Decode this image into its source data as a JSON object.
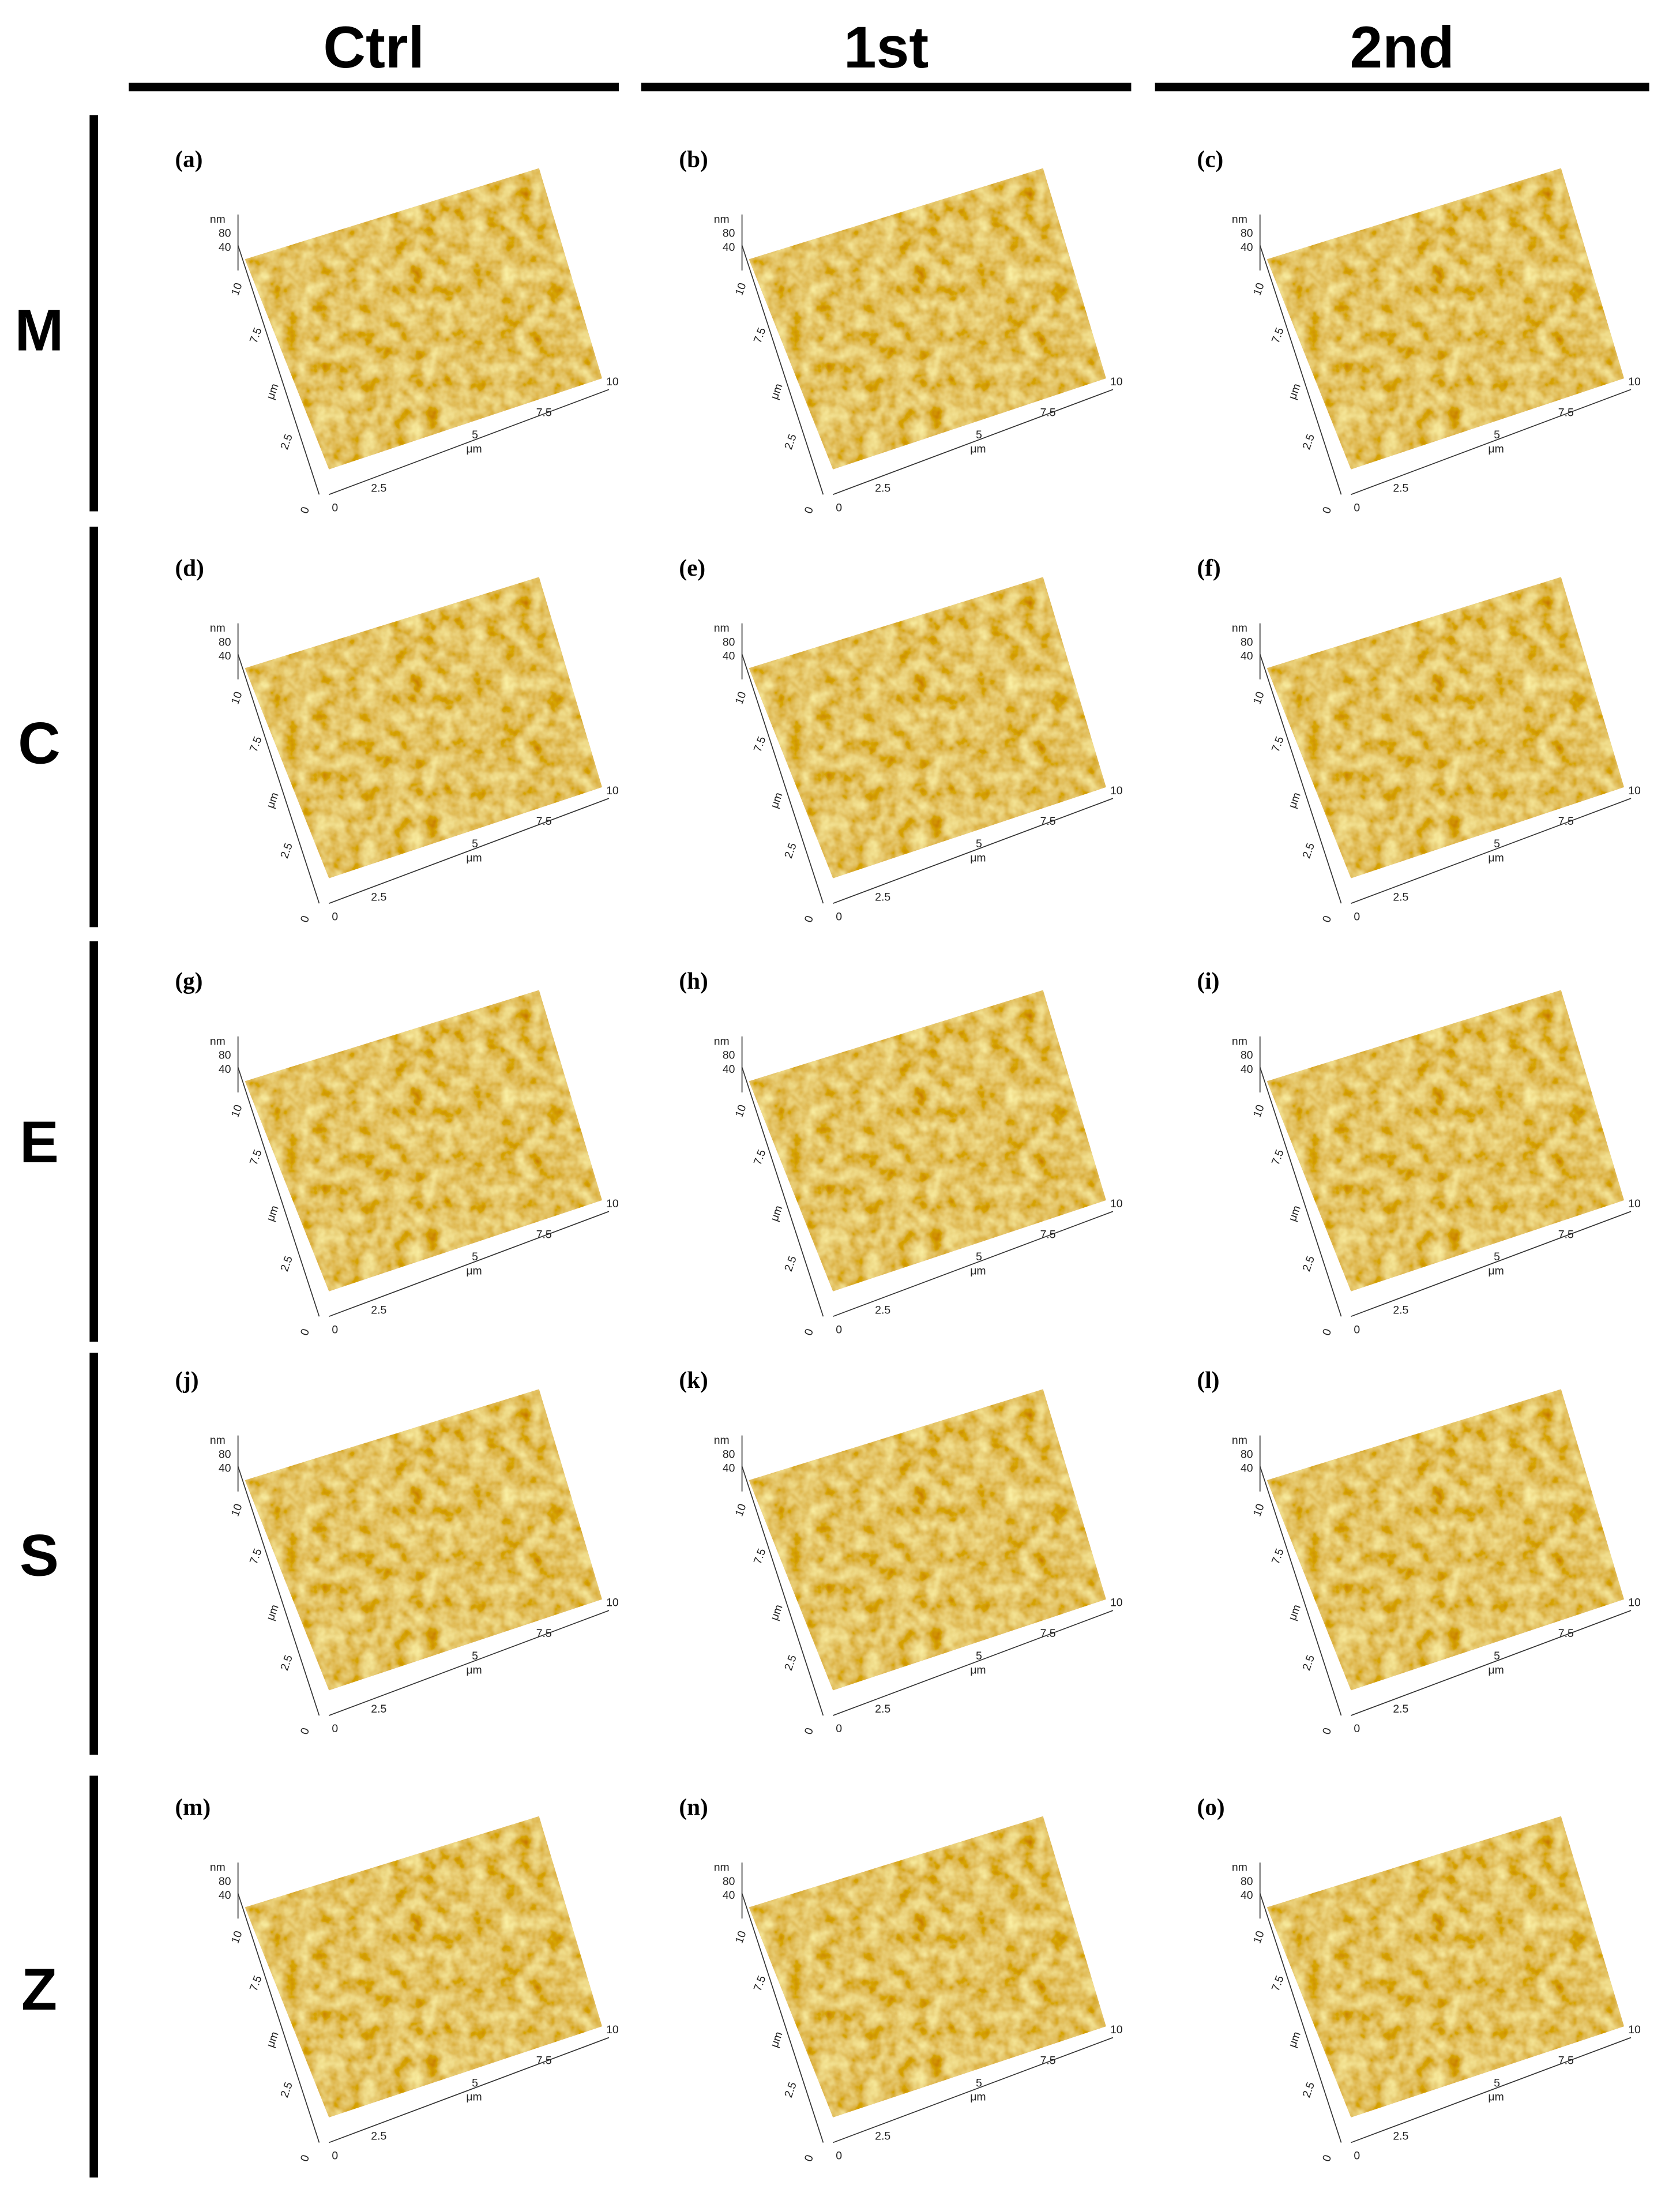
{
  "columns": [
    "Ctrl",
    "1st",
    "2nd"
  ],
  "rows": [
    "M",
    "C",
    "E",
    "S",
    "Z"
  ],
  "panels": [
    [
      "(a)",
      "(b)",
      "(c)"
    ],
    [
      "(d)",
      "(e)",
      "(f)"
    ],
    [
      "(g)",
      "(h)",
      "(i)"
    ],
    [
      "(j)",
      "(k)",
      "(l)"
    ],
    [
      "(m)",
      "(n)",
      "(o)"
    ]
  ],
  "axis_labels": {
    "z_unit": "nm",
    "z_ticks": [
      "80",
      "40"
    ],
    "y_ticks": [
      "0",
      "2.5",
      "7.5",
      "10"
    ],
    "y_unit": "μm",
    "x_ticks": [
      "0",
      "2.5",
      "5",
      "7.5",
      "10"
    ],
    "x_unit": "μm"
  }
}
